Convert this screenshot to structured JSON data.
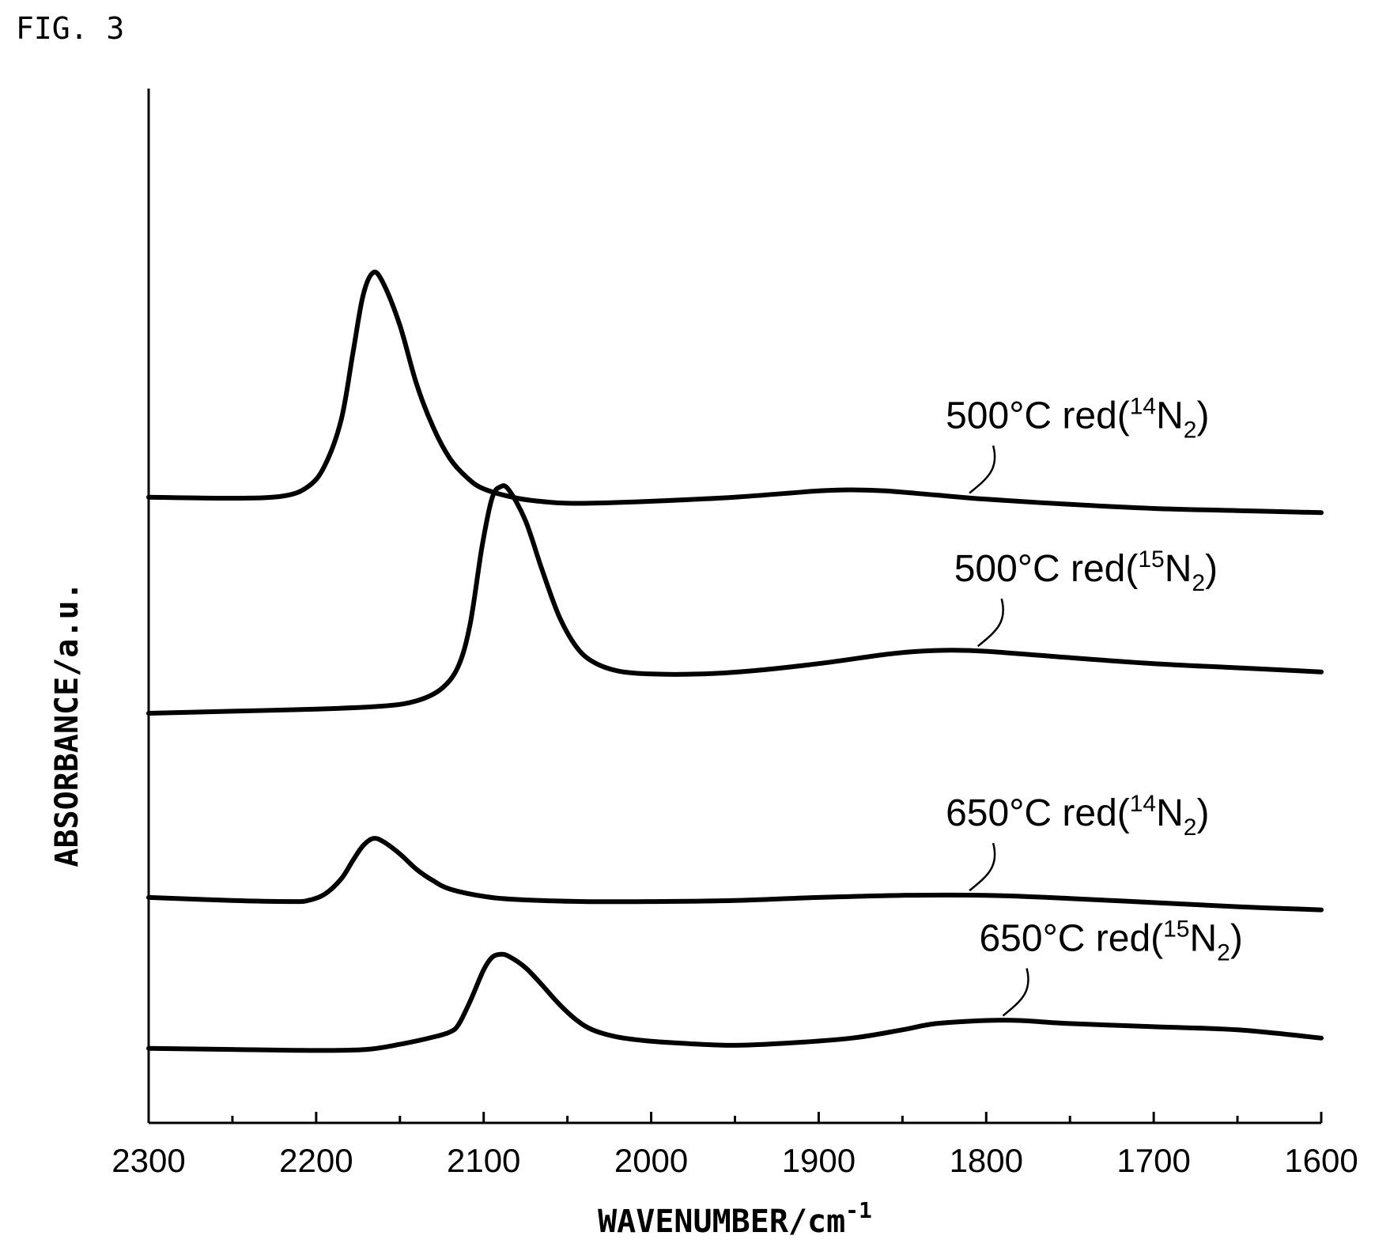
{
  "figure_label": "FIG. 3",
  "chart_data": {
    "type": "line",
    "title": "",
    "xlabel": "WAVENUMBER/cm",
    "xlabel_superscript": "-1",
    "ylabel": "ABSORBANCE/a.u.",
    "xlim": [
      2300,
      1600
    ],
    "x_reversed": true,
    "ylim": [
      0,
      1
    ],
    "y_ticks_shown": false,
    "grid": false,
    "x_ticks": [
      "2300",
      "2200",
      "2100",
      "2000",
      "1900",
      "1800",
      "1700",
      "1600"
    ],
    "x_tick_values": [
      2300,
      2200,
      2100,
      2000,
      1900,
      1800,
      1700,
      1600
    ],
    "x_minor_tick_values": [
      2250,
      2150,
      2050,
      1950,
      1850,
      1750,
      1650
    ],
    "series": [
      {
        "label": {
          "temp": "500",
          "unit": "°C red(",
          "isotope_sup": "14",
          "element": "N",
          "sub": "2",
          "close": ")"
        },
        "label_at": 1810,
        "points": [
          [
            2300,
            0.605
          ],
          [
            2250,
            0.604
          ],
          [
            2220,
            0.606
          ],
          [
            2205,
            0.615
          ],
          [
            2195,
            0.635
          ],
          [
            2185,
            0.68
          ],
          [
            2178,
            0.745
          ],
          [
            2172,
            0.8
          ],
          [
            2166,
            0.822
          ],
          [
            2160,
            0.812
          ],
          [
            2150,
            0.771
          ],
          [
            2140,
            0.714
          ],
          [
            2130,
            0.672
          ],
          [
            2120,
            0.642
          ],
          [
            2110,
            0.624
          ],
          [
            2100,
            0.613
          ],
          [
            2080,
            0.604
          ],
          [
            2060,
            0.6
          ],
          [
            2040,
            0.599
          ],
          [
            2000,
            0.601
          ],
          [
            1950,
            0.605
          ],
          [
            1900,
            0.611
          ],
          [
            1880,
            0.612
          ],
          [
            1860,
            0.611
          ],
          [
            1830,
            0.607
          ],
          [
            1800,
            0.603
          ],
          [
            1750,
            0.598
          ],
          [
            1700,
            0.594
          ],
          [
            1650,
            0.592
          ],
          [
            1600,
            0.59
          ]
        ]
      },
      {
        "label": {
          "temp": "500",
          "unit": "°C red(",
          "isotope_sup": "15",
          "element": "N",
          "sub": "2",
          "close": ")"
        },
        "label_at": 1805,
        "points": [
          [
            2300,
            0.396
          ],
          [
            2250,
            0.398
          ],
          [
            2200,
            0.4
          ],
          [
            2160,
            0.403
          ],
          [
            2140,
            0.408
          ],
          [
            2125,
            0.42
          ],
          [
            2115,
            0.442
          ],
          [
            2108,
            0.483
          ],
          [
            2101,
            0.557
          ],
          [
            2095,
            0.604
          ],
          [
            2090,
            0.615
          ],
          [
            2085,
            0.612
          ],
          [
            2075,
            0.582
          ],
          [
            2065,
            0.534
          ],
          [
            2055,
            0.49
          ],
          [
            2045,
            0.461
          ],
          [
            2035,
            0.446
          ],
          [
            2020,
            0.437
          ],
          [
            2000,
            0.434
          ],
          [
            1970,
            0.434
          ],
          [
            1940,
            0.437
          ],
          [
            1900,
            0.444
          ],
          [
            1860,
            0.453
          ],
          [
            1840,
            0.456
          ],
          [
            1820,
            0.457
          ],
          [
            1800,
            0.456
          ],
          [
            1760,
            0.451
          ],
          [
            1700,
            0.444
          ],
          [
            1650,
            0.44
          ],
          [
            1600,
            0.436
          ]
        ]
      },
      {
        "label": {
          "temp": "650",
          "unit": "°C red(",
          "isotope_sup": "14",
          "element": "N",
          "sub": "2",
          "close": ")"
        },
        "label_at": 1810,
        "points": [
          [
            2300,
            0.218
          ],
          [
            2250,
            0.215
          ],
          [
            2215,
            0.214
          ],
          [
            2205,
            0.215
          ],
          [
            2195,
            0.221
          ],
          [
            2185,
            0.236
          ],
          [
            2178,
            0.254
          ],
          [
            2172,
            0.268
          ],
          [
            2166,
            0.275
          ],
          [
            2160,
            0.272
          ],
          [
            2150,
            0.26
          ],
          [
            2140,
            0.245
          ],
          [
            2130,
            0.234
          ],
          [
            2120,
            0.226
          ],
          [
            2100,
            0.219
          ],
          [
            2080,
            0.216
          ],
          [
            2040,
            0.214
          ],
          [
            2000,
            0.214
          ],
          [
            1950,
            0.215
          ],
          [
            1900,
            0.218
          ],
          [
            1850,
            0.22
          ],
          [
            1800,
            0.22
          ],
          [
            1750,
            0.217
          ],
          [
            1700,
            0.213
          ],
          [
            1650,
            0.209
          ],
          [
            1600,
            0.206
          ]
        ]
      },
      {
        "label": {
          "temp": "650",
          "unit": "°C red(",
          "isotope_sup": "15",
          "element": "N",
          "sub": "2",
          "close": ")"
        },
        "label_at": 1790,
        "points": [
          [
            2300,
            0.072
          ],
          [
            2250,
            0.071
          ],
          [
            2200,
            0.07
          ],
          [
            2170,
            0.071
          ],
          [
            2150,
            0.076
          ],
          [
            2130,
            0.083
          ],
          [
            2120,
            0.088
          ],
          [
            2115,
            0.095
          ],
          [
            2108,
            0.118
          ],
          [
            2100,
            0.148
          ],
          [
            2095,
            0.16
          ],
          [
            2090,
            0.163
          ],
          [
            2085,
            0.161
          ],
          [
            2075,
            0.15
          ],
          [
            2065,
            0.133
          ],
          [
            2055,
            0.115
          ],
          [
            2045,
            0.1
          ],
          [
            2035,
            0.09
          ],
          [
            2020,
            0.083
          ],
          [
            2000,
            0.079
          ],
          [
            1970,
            0.076
          ],
          [
            1950,
            0.075
          ],
          [
            1920,
            0.077
          ],
          [
            1880,
            0.082
          ],
          [
            1850,
            0.09
          ],
          [
            1830,
            0.096
          ],
          [
            1800,
            0.099
          ],
          [
            1780,
            0.099
          ],
          [
            1750,
            0.096
          ],
          [
            1700,
            0.093
          ],
          [
            1650,
            0.09
          ],
          [
            1600,
            0.082
          ]
        ]
      }
    ]
  }
}
